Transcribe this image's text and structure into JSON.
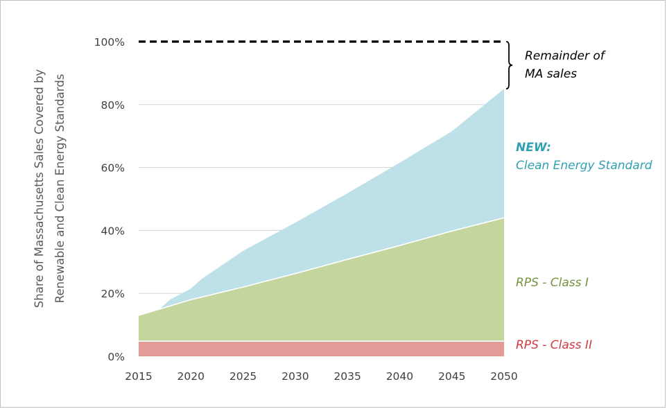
{
  "chart_data": {
    "type": "area",
    "ylabel_lines": [
      "Share of Massachusetts Sales Covered by",
      "Renewable and Clean Energy Standards"
    ],
    "x_ticks": [
      2015,
      2020,
      2025,
      2030,
      2035,
      2040,
      2045,
      2050
    ],
    "xlim": [
      2015,
      2050
    ],
    "y_ticks": [
      0,
      20,
      40,
      60,
      80,
      100
    ],
    "y_tick_labels": [
      "0%",
      "20%",
      "40%",
      "60%",
      "80%",
      "100%"
    ],
    "ylim": [
      0,
      100
    ],
    "grid": true,
    "series": [
      {
        "key": "rps_class_2",
        "label": "RPS - Class II",
        "color": "#e39b98",
        "label_color": "#d03a3f",
        "x": [
          2015,
          2050
        ],
        "y": [
          4.8,
          4.8
        ]
      },
      {
        "key": "rps_class_1",
        "label": "RPS - Class I",
        "color": "#c4d59d",
        "label_color": "#76923c",
        "x": [
          2015,
          2020,
          2025,
          2030,
          2035,
          2040,
          2045,
          2050
        ],
        "y": [
          13,
          18,
          22,
          26.3,
          30.8,
          35.2,
          39.8,
          44
        ]
      },
      {
        "key": "ces",
        "label_prefix": "NEW:",
        "label": "Clean Energy Standard",
        "color": "#bde0e9",
        "label_color": "#31a0b3",
        "x": [
          2017,
          2018,
          2020,
          2021,
          2025,
          2030,
          2035,
          2040,
          2045,
          2050
        ],
        "y": [
          15,
          18,
          21.5,
          24.5,
          33.5,
          42.5,
          51.8,
          61.5,
          71.5,
          85
        ]
      }
    ],
    "target_line": {
      "y": 100,
      "style": "dashed",
      "color": "#000000"
    },
    "annotation": {
      "lines": [
        "Remainder of",
        "MA sales"
      ],
      "color": "#000000",
      "brace_from": 85,
      "brace_to": 100
    }
  }
}
